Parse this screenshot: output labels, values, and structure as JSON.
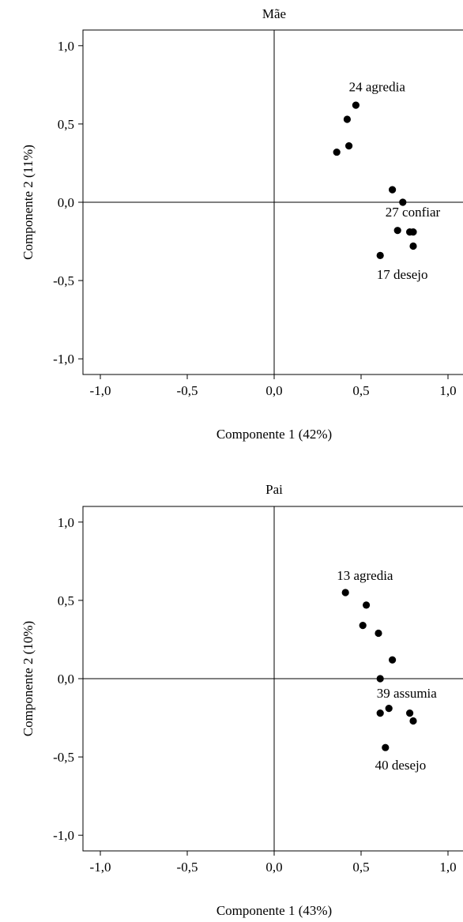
{
  "chart_data": [
    {
      "type": "scatter",
      "title": "Mãe",
      "xlabel": "Componente 1 (42%)",
      "ylabel": "Componente 2 (11%)",
      "xlim": [
        -1.1,
        1.1
      ],
      "ylim": [
        -1.1,
        1.1
      ],
      "xticks": [
        -1.0,
        -0.5,
        0.0,
        0.5,
        1.0
      ],
      "xtick_labels": [
        "-1,0",
        "-0,5",
        "0,0",
        "0,5",
        "1,0"
      ],
      "yticks": [
        1.0,
        0.5,
        0.0,
        -0.5,
        -1.0
      ],
      "ytick_labels": [
        "1,0",
        "0,5",
        "0,0",
        "-0,5",
        "-1,0"
      ],
      "zero_lines": true,
      "points": [
        {
          "x": 0.47,
          "y": 0.62
        },
        {
          "x": 0.42,
          "y": 0.53
        },
        {
          "x": 0.43,
          "y": 0.36
        },
        {
          "x": 0.36,
          "y": 0.32
        },
        {
          "x": 0.68,
          "y": 0.08
        },
        {
          "x": 0.74,
          "y": 0.0
        },
        {
          "x": 0.71,
          "y": -0.18
        },
        {
          "x": 0.78,
          "y": -0.19
        },
        {
          "x": 0.8,
          "y": -0.19
        },
        {
          "x": 0.8,
          "y": -0.28
        },
        {
          "x": 0.61,
          "y": -0.34
        }
      ],
      "annotations": [
        {
          "text": "24 agredia",
          "x": 0.43,
          "y": 0.71
        },
        {
          "text": "27 confiar",
          "x": 0.64,
          "y": -0.09
        },
        {
          "text": "17 desejo",
          "x": 0.59,
          "y": -0.49
        }
      ]
    },
    {
      "type": "scatter",
      "title": "Pai",
      "xlabel": "Componente 1 (43%)",
      "ylabel": "Componente 2 (10%)",
      "xlim": [
        -1.1,
        1.1
      ],
      "ylim": [
        -1.1,
        1.1
      ],
      "xticks": [
        -1.0,
        -0.5,
        0.0,
        0.5,
        1.0
      ],
      "xtick_labels": [
        "-1,0",
        "-0,5",
        "0,0",
        "0,5",
        "1,0"
      ],
      "yticks": [
        1.0,
        0.5,
        0.0,
        -0.5,
        -1.0
      ],
      "ytick_labels": [
        "1,0",
        "0,5",
        "0,0",
        "-0,5",
        "-1,0"
      ],
      "zero_lines": true,
      "points": [
        {
          "x": 0.41,
          "y": 0.55
        },
        {
          "x": 0.53,
          "y": 0.47
        },
        {
          "x": 0.51,
          "y": 0.34
        },
        {
          "x": 0.6,
          "y": 0.29
        },
        {
          "x": 0.68,
          "y": 0.12
        },
        {
          "x": 0.61,
          "y": 0.0
        },
        {
          "x": 0.66,
          "y": -0.19
        },
        {
          "x": 0.61,
          "y": -0.22
        },
        {
          "x": 0.78,
          "y": -0.22
        },
        {
          "x": 0.8,
          "y": -0.27
        },
        {
          "x": 0.64,
          "y": -0.44
        }
      ],
      "annotations": [
        {
          "text": "13 agredia",
          "x": 0.36,
          "y": 0.63
        },
        {
          "text": "39 assumia",
          "x": 0.59,
          "y": -0.12
        },
        {
          "text": "40 desejo",
          "x": 0.58,
          "y": -0.58
        }
      ]
    }
  ]
}
